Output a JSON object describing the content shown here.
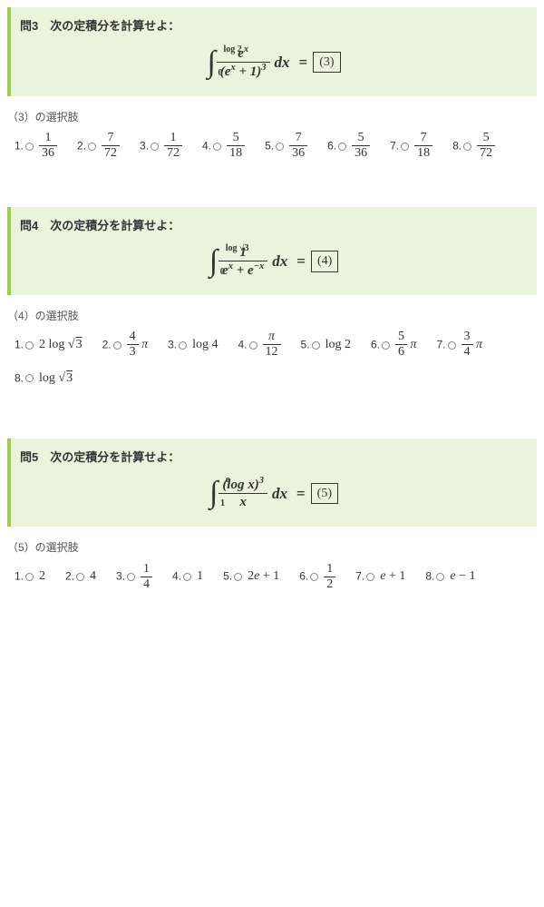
{
  "colors": {
    "box_bg": "#eaf4dc",
    "box_border": "#9cce4a",
    "text": "#333333",
    "radio_border": "#888888"
  },
  "problems": [
    {
      "title": "問3　次の定積分を計算せよ：",
      "upper": "log 2",
      "lower": "0",
      "integrand_num": "e<sup>x</sup>",
      "integrand_den": "(e<sup>x</sup> + 1)<sup>3</sup>",
      "answer_box": "(3)",
      "choices_label": "（3）の選択肢",
      "choices": [
        {
          "n": "1",
          "val": "<span class='cfrac'><span class='n'>1</span><span class='d'>36</span></span>"
        },
        {
          "n": "2",
          "val": "<span class='cfrac'><span class='n'>7</span><span class='d'>72</span></span>"
        },
        {
          "n": "3",
          "val": "<span class='cfrac'><span class='n'>1</span><span class='d'>72</span></span>"
        },
        {
          "n": "4",
          "val": "<span class='cfrac'><span class='n'>5</span><span class='d'>18</span></span>"
        },
        {
          "n": "5",
          "val": "<span class='cfrac'><span class='n'>7</span><span class='d'>36</span></span>"
        },
        {
          "n": "6",
          "val": "<span class='cfrac'><span class='n'>5</span><span class='d'>36</span></span>"
        },
        {
          "n": "7",
          "val": "<span class='cfrac'><span class='n'>7</span><span class='d'>18</span></span>"
        },
        {
          "n": "8",
          "val": "<span class='cfrac'><span class='n'>5</span><span class='d'>72</span></span>"
        }
      ]
    },
    {
      "title": "問4　次の定積分を計算せよ：",
      "upper": "log √3",
      "lower": "0",
      "integrand_num": "1",
      "integrand_den": "e<sup>x</sup> + e<sup>&minus;x</sup>",
      "answer_box": "(4)",
      "choices_label": "（4）の選択肢",
      "choices": [
        {
          "n": "1",
          "val": "2 log √<span class='sqrt'>3</span>"
        },
        {
          "n": "2",
          "val": "<span class='cfrac'><span class='n'>4</span><span class='d'>3</span></span> <i>π</i>"
        },
        {
          "n": "3",
          "val": "log 4"
        },
        {
          "n": "4",
          "val": "<span class='cfrac'><span class='n'><i>π</i></span><span class='d'>12</span></span>"
        },
        {
          "n": "5",
          "val": "log 2"
        },
        {
          "n": "6",
          "val": "<span class='cfrac'><span class='n'>5</span><span class='d'>6</span></span> <i>π</i>"
        },
        {
          "n": "7",
          "val": "<span class='cfrac'><span class='n'>3</span><span class='d'>4</span></span> <i>π</i>"
        },
        {
          "n": "8",
          "val": "log √<span class='sqrt'>3</span>"
        }
      ]
    },
    {
      "title": "問5　次の定積分を計算せよ：",
      "upper": "e",
      "lower": "1",
      "integrand_num": "(log <i>x</i>)<sup>3</sup>",
      "integrand_den": "<i>x</i>",
      "answer_box": "(5)",
      "choices_label": "（5）の選択肢",
      "choices": [
        {
          "n": "1",
          "val": "2"
        },
        {
          "n": "2",
          "val": "4"
        },
        {
          "n": "3",
          "val": "<span class='cfrac'><span class='n'>1</span><span class='d'>4</span></span>"
        },
        {
          "n": "4",
          "val": "1"
        },
        {
          "n": "5",
          "val": "2<i>e</i> + 1"
        },
        {
          "n": "6",
          "val": "<span class='cfrac'><span class='n'>1</span><span class='d'>2</span></span>"
        },
        {
          "n": "7",
          "val": "<i>e</i> + 1"
        },
        {
          "n": "8",
          "val": "<i>e</i> &minus; 1"
        }
      ]
    }
  ]
}
